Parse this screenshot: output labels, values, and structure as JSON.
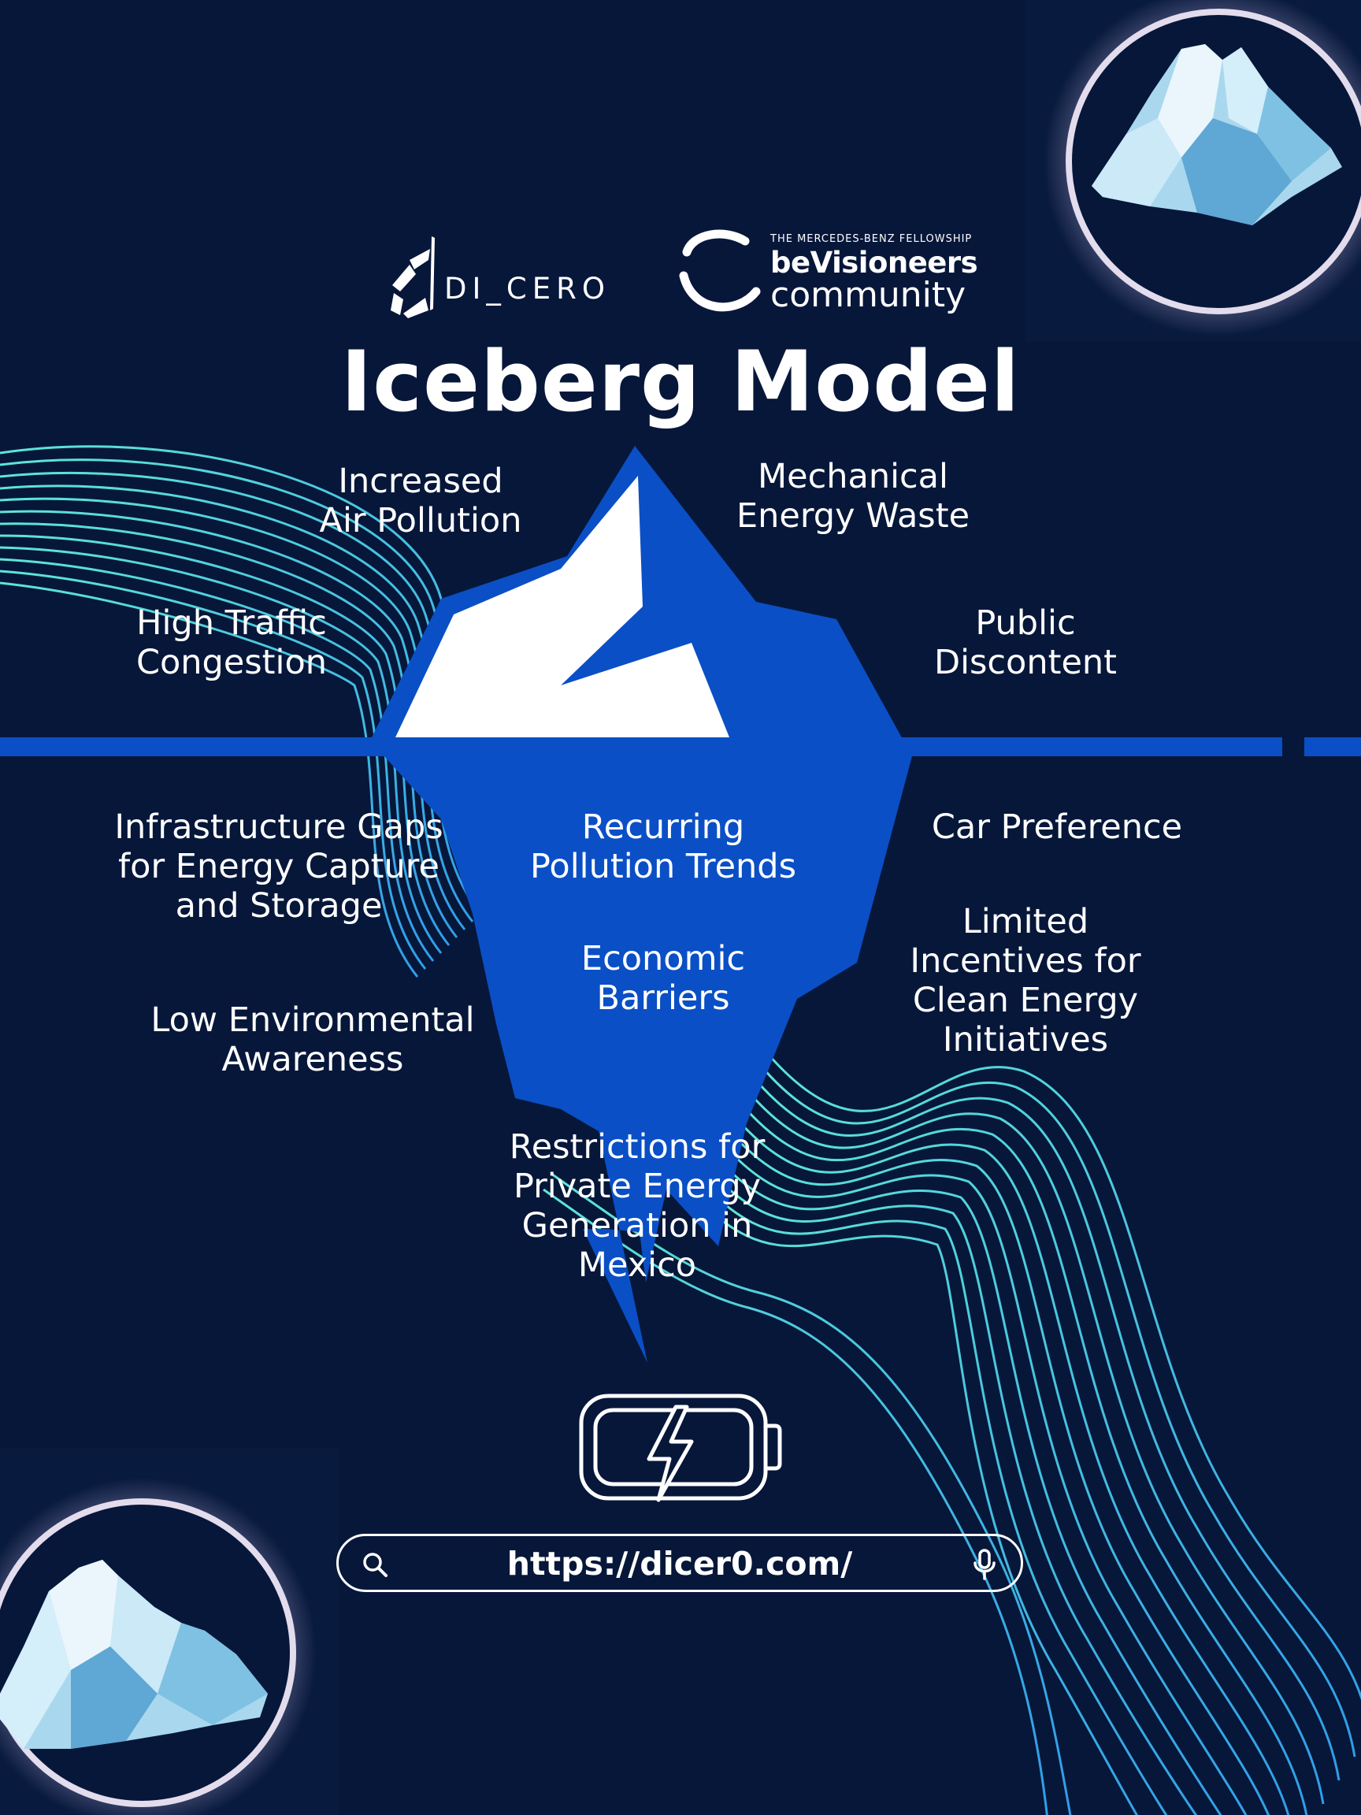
{
  "header": {
    "logo_dicero": "DI_CERO",
    "logo_bv_fellowship": "THE MERCEDES-BENZ FELLOWSHIP",
    "logo_bv_name": "beVisioneers",
    "logo_bv_community": "community"
  },
  "title": "Iceberg Model",
  "above_water": [
    {
      "id": "air",
      "text": "Increased\nAir Pollution"
    },
    {
      "id": "mech",
      "text": "Mechanical\nEnergy Waste"
    },
    {
      "id": "traffic",
      "text": "High Traffic\nCongestion"
    },
    {
      "id": "discontent",
      "text": "Public\nDiscontent"
    }
  ],
  "below_water": [
    {
      "id": "infra",
      "text": "Infrastructure Gaps\nfor Energy Capture\nand Storage"
    },
    {
      "id": "recurring",
      "text": "Recurring\nPollution Trends"
    },
    {
      "id": "car",
      "text": "Car Preference"
    },
    {
      "id": "economic",
      "text": "Economic\nBarriers"
    },
    {
      "id": "incentives",
      "text": "Limited\nIncentives for\nClean Energy\nInitiatives"
    },
    {
      "id": "awareness",
      "text": "Low Environmental\nAwareness"
    },
    {
      "id": "restrictions",
      "text": "Restrictions for\nPrivate Energy\nGeneration in\nMexico"
    }
  ],
  "search": {
    "url": "https://dicer0.com/",
    "search_icon": "search-icon",
    "mic_icon": "microphone-icon"
  },
  "icons": {
    "battery": "battery-bolt-icon",
    "iceberg": "iceberg-illustration"
  },
  "colors": {
    "background": "#07173a",
    "iceberg_blue": "#0a4fc5",
    "waterline": "#0a4fc5",
    "wave_cyan": "#45c8e0",
    "text": "#ffffff"
  }
}
